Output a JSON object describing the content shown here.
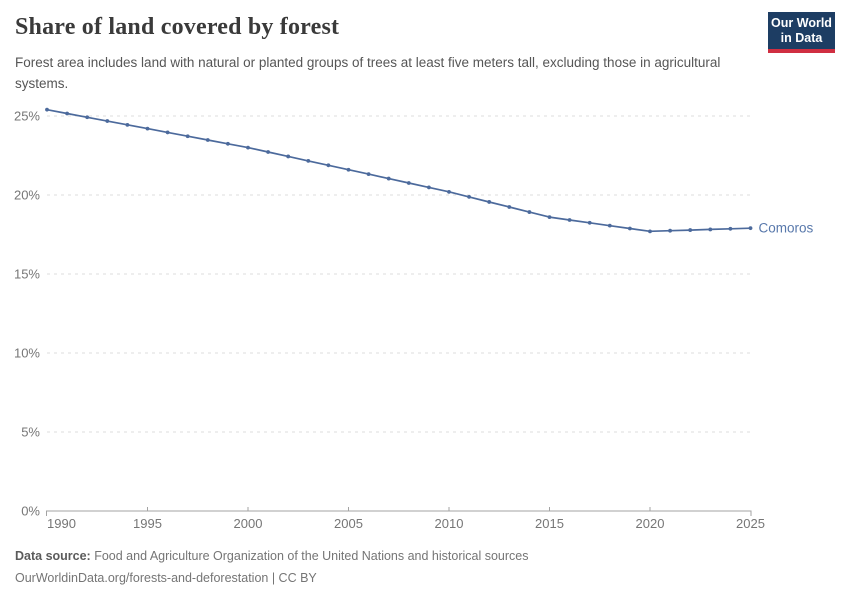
{
  "header": {
    "title": "Share of land covered by forest",
    "subtitle": "Forest area includes land with natural or planted groups of trees at least five meters tall, excluding those in agricultural systems."
  },
  "logo": {
    "line1": "Our World",
    "line2": "in Data"
  },
  "footer": {
    "datasource_label": "Data source:",
    "datasource_text": "Food and Agriculture Organization of the United Nations and historical sources",
    "citation": "OurWorldinData.org/forests-and-deforestation | CC BY"
  },
  "colors": {
    "line": "#4c6a9c",
    "entity_label": "#5878ab",
    "grid": "#dcdcdc",
    "axis": "#a3a3a3",
    "tick_label": "#767676",
    "logo_bg": "#1d3d63",
    "logo_bar": "#d02e41"
  },
  "chart_data": {
    "type": "line",
    "title": "Share of land covered by forest",
    "xlabel": "",
    "ylabel": "",
    "xlim": [
      1990,
      2025
    ],
    "ylim": [
      0,
      25
    ],
    "xticks": [
      1990,
      1995,
      2000,
      2005,
      2010,
      2015,
      2020,
      2025
    ],
    "yticks": [
      0,
      5,
      10,
      15,
      20,
      25
    ],
    "ytick_suffix": "%",
    "grid": "horizontal-dashed",
    "legend": "end-of-line-label",
    "series": [
      {
        "name": "Comoros",
        "x": [
          1990,
          1991,
          1992,
          1993,
          1994,
          1995,
          1996,
          1997,
          1998,
          1999,
          2000,
          2001,
          2002,
          2003,
          2004,
          2005,
          2006,
          2007,
          2008,
          2009,
          2010,
          2011,
          2012,
          2013,
          2014,
          2015,
          2016,
          2017,
          2018,
          2019,
          2020,
          2021,
          2022,
          2023,
          2024,
          2025
        ],
        "values": [
          25.4,
          25.16,
          24.92,
          24.68,
          24.44,
          24.2,
          23.96,
          23.72,
          23.48,
          23.24,
          23.0,
          22.72,
          22.44,
          22.16,
          21.88,
          21.6,
          21.32,
          21.04,
          20.76,
          20.48,
          20.2,
          19.88,
          19.56,
          19.24,
          18.92,
          18.6,
          18.42,
          18.24,
          18.06,
          17.88,
          17.7,
          17.74,
          17.78,
          17.82,
          17.86,
          17.9
        ]
      }
    ]
  }
}
